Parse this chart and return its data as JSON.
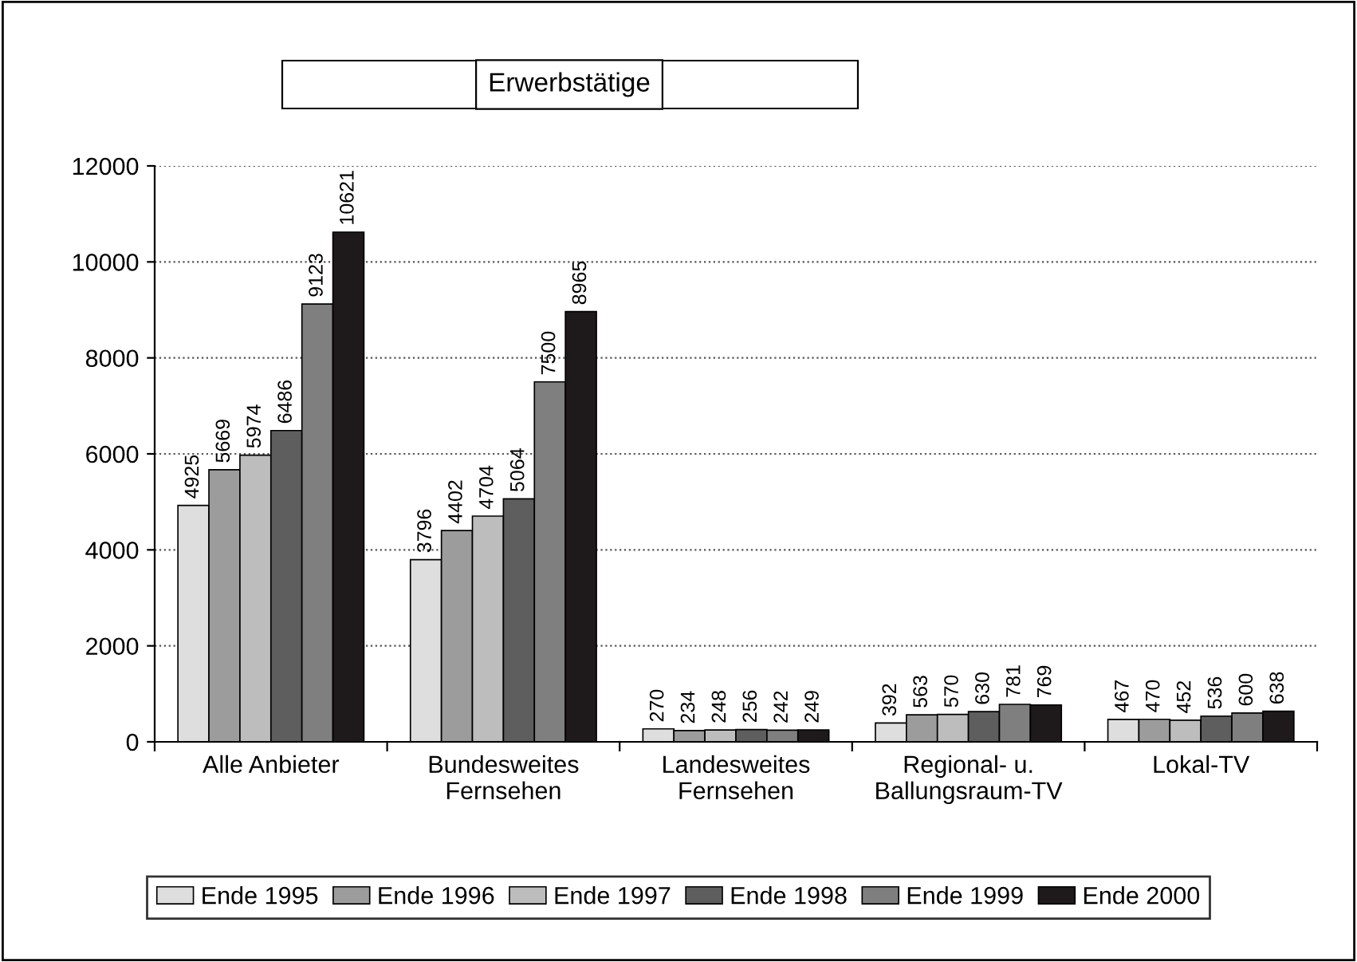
{
  "chart_data": {
    "type": "bar",
    "title": "Erwerbstätige",
    "categories": [
      "Alle Anbieter",
      "Bundesweites\nFernsehen",
      "Landesweites\nFernsehen",
      "Regional- u.\nBallungsraum-TV",
      "Lokal-TV"
    ],
    "series": [
      {
        "name": "Ende 1995",
        "color": "#dedede",
        "values": [
          4925,
          3796,
          270,
          392,
          467
        ]
      },
      {
        "name": "Ende 1996",
        "color": "#9c9c9c",
        "values": [
          5669,
          4402,
          234,
          563,
          470
        ]
      },
      {
        "name": "Ende 1997",
        "color": "#bdbdbd",
        "values": [
          5974,
          4704,
          248,
          570,
          452
        ]
      },
      {
        "name": "Ende 1998",
        "color": "#5e5e5e",
        "values": [
          6486,
          5064,
          256,
          630,
          536
        ]
      },
      {
        "name": "Ende 1999",
        "color": "#7f7f7f",
        "values": [
          9123,
          7500,
          242,
          781,
          600
        ]
      },
      {
        "name": "Ende 2000",
        "color": "#1e1a1b",
        "values": [
          10621,
          8965,
          249,
          769,
          638
        ]
      }
    ],
    "ylim": [
      0,
      12000
    ],
    "yticks": [
      0,
      2000,
      4000,
      6000,
      8000,
      10000,
      12000
    ],
    "grid": "y",
    "legend": "bottom",
    "data_labels": true
  }
}
